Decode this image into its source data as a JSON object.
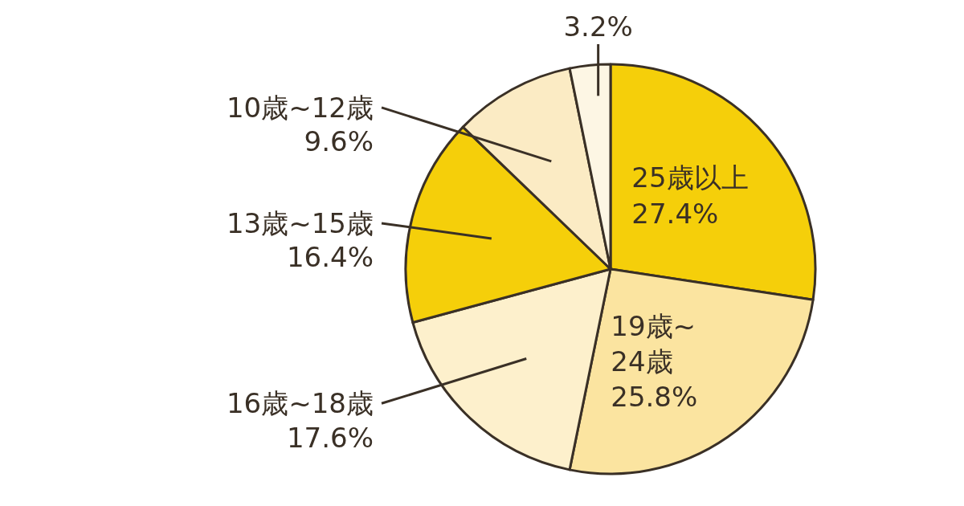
{
  "chart_data": {
    "type": "pie",
    "categories": [
      "25歳以上",
      "19歳~24歳",
      "16歳~18歳",
      "13歳~15歳",
      "10歳~12歳",
      null
    ],
    "values": [
      27.4,
      25.8,
      17.6,
      16.4,
      9.6,
      3.2
    ],
    "value_labels": [
      "27.4%",
      "25.8%",
      "17.6%",
      "16.4%",
      "9.6%",
      "3.2%"
    ],
    "colors": [
      "#f5cf0a",
      "#fbe4a0",
      "#fdf0cc",
      "#f5cf0a",
      "#fbebc4",
      "#fdf6e4"
    ]
  }
}
